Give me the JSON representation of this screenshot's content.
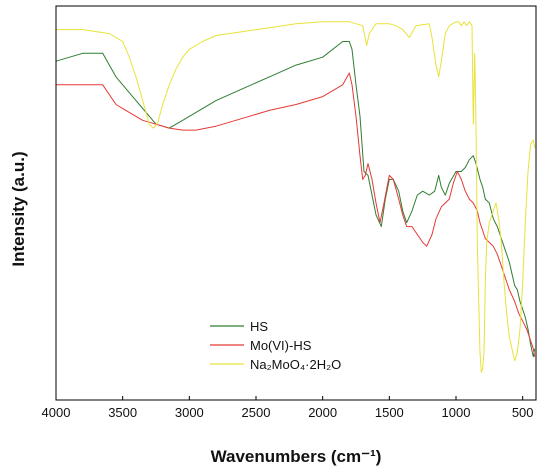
{
  "chart_data": {
    "type": "line",
    "title": "",
    "xlabel": "Wavenumbers (cm⁻¹)",
    "ylabel": "Intensity (a.u.)",
    "xlim": [
      4000,
      400
    ],
    "x_reversed": true,
    "ylim": [
      0,
      100
    ],
    "x_ticks": [
      4000,
      3500,
      3000,
      2500,
      2000,
      1500,
      1000,
      500
    ],
    "y_ticks_shown": false,
    "grid": false,
    "legend_position": "bottom-center",
    "series": [
      {
        "name": "HS",
        "color": "#2e7d32",
        "points": [
          [
            4000,
            86
          ],
          [
            3800,
            88
          ],
          [
            3650,
            88
          ],
          [
            3550,
            82
          ],
          [
            3450,
            78
          ],
          [
            3350,
            74
          ],
          [
            3250,
            70
          ],
          [
            3150,
            69
          ],
          [
            3050,
            71
          ],
          [
            2950,
            73
          ],
          [
            2800,
            76
          ],
          [
            2600,
            79
          ],
          [
            2400,
            82
          ],
          [
            2200,
            85
          ],
          [
            2000,
            87
          ],
          [
            1850,
            91
          ],
          [
            1800,
            91
          ],
          [
            1780,
            89
          ],
          [
            1750,
            80
          ],
          [
            1720,
            72
          ],
          [
            1690,
            58
          ],
          [
            1660,
            57
          ],
          [
            1630,
            52
          ],
          [
            1600,
            47
          ],
          [
            1560,
            44
          ],
          [
            1530,
            51
          ],
          [
            1500,
            56
          ],
          [
            1470,
            56
          ],
          [
            1430,
            53
          ],
          [
            1400,
            48
          ],
          [
            1370,
            45
          ],
          [
            1330,
            48
          ],
          [
            1290,
            52
          ],
          [
            1250,
            53
          ],
          [
            1200,
            52
          ],
          [
            1160,
            53
          ],
          [
            1130,
            57
          ],
          [
            1110,
            54
          ],
          [
            1080,
            52
          ],
          [
            1050,
            55
          ],
          [
            1000,
            58
          ],
          [
            960,
            58
          ],
          [
            930,
            59
          ],
          [
            900,
            61
          ],
          [
            870,
            62
          ],
          [
            850,
            60
          ],
          [
            820,
            56
          ],
          [
            800,
            54
          ],
          [
            780,
            51
          ],
          [
            750,
            50
          ],
          [
            720,
            46
          ],
          [
            690,
            44
          ],
          [
            660,
            41
          ],
          [
            630,
            38
          ],
          [
            600,
            35
          ],
          [
            560,
            29
          ],
          [
            540,
            28
          ],
          [
            520,
            25
          ],
          [
            500,
            23
          ],
          [
            480,
            21
          ],
          [
            460,
            18
          ],
          [
            440,
            14
          ],
          [
            420,
            11
          ],
          [
            410,
            13
          ]
        ]
      },
      {
        "name": "Mo(VI)-HS",
        "color": "#e53935",
        "points": [
          [
            4000,
            80
          ],
          [
            3800,
            80
          ],
          [
            3650,
            80
          ],
          [
            3550,
            75
          ],
          [
            3450,
            73
          ],
          [
            3350,
            71
          ],
          [
            3250,
            70
          ],
          [
            3150,
            69
          ],
          [
            3050,
            68.5
          ],
          [
            2950,
            68.5
          ],
          [
            2800,
            69.5
          ],
          [
            2600,
            71.5
          ],
          [
            2400,
            73.5
          ],
          [
            2200,
            75
          ],
          [
            2000,
            77
          ],
          [
            1850,
            80
          ],
          [
            1800,
            83
          ],
          [
            1780,
            80
          ],
          [
            1750,
            72
          ],
          [
            1720,
            62
          ],
          [
            1700,
            56
          ],
          [
            1680,
            57
          ],
          [
            1660,
            60
          ],
          [
            1630,
            56
          ],
          [
            1600,
            50
          ],
          [
            1570,
            45
          ],
          [
            1540,
            50
          ],
          [
            1500,
            57
          ],
          [
            1470,
            56
          ],
          [
            1430,
            51
          ],
          [
            1400,
            47
          ],
          [
            1370,
            44
          ],
          [
            1330,
            44
          ],
          [
            1290,
            42
          ],
          [
            1250,
            40
          ],
          [
            1220,
            39
          ],
          [
            1180,
            42
          ],
          [
            1150,
            46
          ],
          [
            1110,
            49
          ],
          [
            1080,
            50
          ],
          [
            1050,
            51
          ],
          [
            1020,
            55
          ],
          [
            990,
            58
          ],
          [
            960,
            56
          ],
          [
            930,
            53
          ],
          [
            900,
            51
          ],
          [
            870,
            50
          ],
          [
            840,
            48
          ],
          [
            820,
            45
          ],
          [
            800,
            43
          ],
          [
            780,
            41
          ],
          [
            750,
            40
          ],
          [
            720,
            39
          ],
          [
            690,
            37
          ],
          [
            660,
            34
          ],
          [
            630,
            31
          ],
          [
            600,
            28
          ],
          [
            560,
            25
          ],
          [
            530,
            22
          ],
          [
            500,
            20
          ],
          [
            470,
            18
          ],
          [
            440,
            15
          ],
          [
            420,
            13
          ],
          [
            410,
            11
          ]
        ]
      },
      {
        "name": "Na₂MoO₄·2H₂O",
        "color": "#e8e23a",
        "points": [
          [
            4000,
            94
          ],
          [
            3800,
            94
          ],
          [
            3700,
            93.5
          ],
          [
            3600,
            93
          ],
          [
            3500,
            91
          ],
          [
            3450,
            87
          ],
          [
            3400,
            82
          ],
          [
            3350,
            76
          ],
          [
            3300,
            70
          ],
          [
            3270,
            69
          ],
          [
            3240,
            70
          ],
          [
            3200,
            75
          ],
          [
            3150,
            80
          ],
          [
            3100,
            84
          ],
          [
            3050,
            87
          ],
          [
            3000,
            89
          ],
          [
            2900,
            91
          ],
          [
            2800,
            92.5
          ],
          [
            2600,
            93.5
          ],
          [
            2400,
            94.5
          ],
          [
            2200,
            95.5
          ],
          [
            2000,
            96
          ],
          [
            1800,
            96
          ],
          [
            1700,
            95
          ],
          [
            1670,
            90
          ],
          [
            1650,
            93
          ],
          [
            1600,
            95.5
          ],
          [
            1500,
            95.5
          ],
          [
            1450,
            95
          ],
          [
            1400,
            94
          ],
          [
            1350,
            92
          ],
          [
            1300,
            95
          ],
          [
            1200,
            95.5
          ],
          [
            1180,
            92
          ],
          [
            1150,
            85
          ],
          [
            1130,
            82
          ],
          [
            1110,
            86
          ],
          [
            1080,
            93
          ],
          [
            1050,
            95
          ],
          [
            1000,
            96
          ],
          [
            980,
            96
          ],
          [
            960,
            95
          ],
          [
            940,
            96
          ],
          [
            920,
            95
          ],
          [
            900,
            96
          ],
          [
            880,
            95
          ],
          [
            870,
            70
          ],
          [
            860,
            88
          ],
          [
            850,
            70
          ],
          [
            840,
            40
          ],
          [
            830,
            25
          ],
          [
            820,
            12
          ],
          [
            810,
            7
          ],
          [
            800,
            8
          ],
          [
            790,
            12
          ],
          [
            780,
            30
          ],
          [
            770,
            40
          ],
          [
            750,
            45
          ],
          [
            720,
            48
          ],
          [
            700,
            50
          ],
          [
            680,
            46
          ],
          [
            660,
            40
          ],
          [
            640,
            30
          ],
          [
            620,
            22
          ],
          [
            600,
            16
          ],
          [
            580,
            13
          ],
          [
            560,
            10
          ],
          [
            540,
            12
          ],
          [
            520,
            18
          ],
          [
            500,
            30
          ],
          [
            480,
            45
          ],
          [
            460,
            58
          ],
          [
            440,
            65
          ],
          [
            420,
            66
          ],
          [
            410,
            64
          ]
        ]
      }
    ]
  }
}
